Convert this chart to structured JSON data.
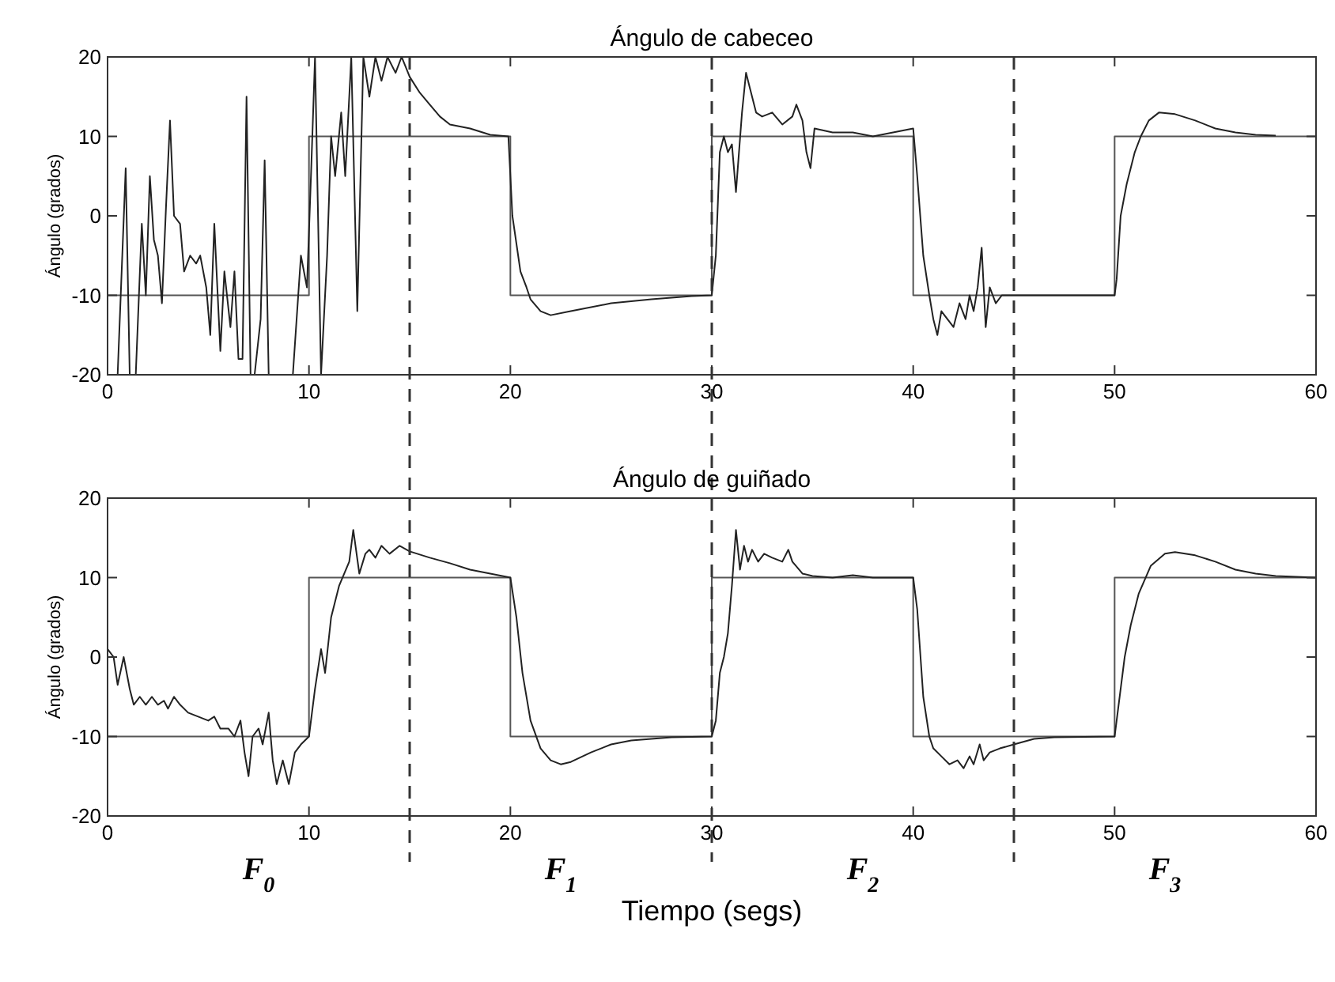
{
  "chart_data": [
    {
      "type": "line",
      "title": "Ángulo de cabeceo",
      "ylabel": "Ángulo (grados)",
      "xlim": [
        0,
        60
      ],
      "ylim": [
        -20,
        20
      ],
      "xticks": [
        0,
        10,
        20,
        30,
        40,
        50,
        60
      ],
      "yticks": [
        -20,
        -10,
        0,
        10,
        20
      ],
      "grid": false,
      "series": [
        {
          "color": "#555555",
          "line_style": "solid",
          "x": [
            0,
            10,
            10,
            20,
            20,
            30,
            30,
            40,
            40,
            50,
            50,
            60,
            60
          ],
          "values": [
            -10,
            -10,
            10,
            10,
            -10,
            -10,
            10,
            10,
            -10,
            -10,
            10,
            10,
            0
          ]
        },
        {
          "color": "#222222",
          "line_style": "solid",
          "x": [
            0.5,
            0.9,
            1.1,
            1.4,
            1.7,
            1.9,
            2.1,
            2.3,
            2.5,
            2.7,
            2.9,
            3.1,
            3.3,
            3.6,
            3.8,
            4.1,
            4.4,
            4.6,
            4.9,
            5.1,
            5.3,
            5.6,
            5.8,
            6.1,
            6.3,
            6.5,
            6.7,
            6.9,
            7.1,
            7.3,
            7.6,
            7.8,
            8.0,
            8.4,
            8.8,
            9.2,
            9.6,
            9.9,
            10.1,
            10.3,
            10.6,
            10.9,
            11.1,
            11.3,
            11.6,
            11.8,
            12.1,
            12.4,
            12.7,
            13,
            13.3,
            13.6,
            13.9,
            14.3,
            14.6,
            15,
            15.5,
            16,
            16.5,
            17,
            18,
            19,
            19.9,
            20.1,
            20.5,
            20.8,
            21,
            21.5,
            22,
            23,
            25,
            27,
            29,
            30,
            30.2,
            30.4,
            30.6,
            30.8,
            31,
            31.2,
            31.5,
            31.7,
            31.9,
            32.2,
            32.5,
            33,
            33.5,
            34,
            34.2,
            34.5,
            34.7,
            34.9,
            35.1,
            36,
            37,
            38,
            39,
            40,
            40.2,
            40.5,
            40.8,
            41,
            41.2,
            41.4,
            41.7,
            42,
            42.3,
            42.6,
            42.8,
            43,
            43.2,
            43.4,
            43.6,
            43.8,
            44.1,
            44.4,
            45,
            46,
            50,
            50.1,
            50.3,
            50.6,
            51,
            51.3,
            51.7,
            52.2,
            53,
            54,
            55,
            56,
            57,
            58
          ],
          "values": [
            -20,
            6,
            -20,
            -20,
            -1,
            -10,
            5,
            -3,
            -5,
            -11,
            1,
            12,
            0,
            -1,
            -7,
            -5,
            -6,
            -5,
            -9,
            -15,
            -1,
            -17,
            -7,
            -14,
            -7,
            -18,
            -18,
            15,
            -20,
            -20,
            -13,
            7,
            -20,
            -20,
            -20,
            -20,
            -5,
            -9,
            5,
            20,
            -20,
            -5,
            10,
            5,
            13,
            5,
            20,
            -12,
            20,
            15,
            20,
            17,
            20,
            18,
            20,
            17.5,
            15.5,
            14,
            12.5,
            11.5,
            11,
            10.2,
            10,
            0,
            -7,
            -9,
            -10.5,
            -12,
            -12.5,
            -12,
            -11,
            -10.5,
            -10.1,
            -10,
            -5,
            8,
            10,
            8,
            9,
            3,
            13,
            18,
            16,
            13,
            12.5,
            13,
            11.5,
            12.5,
            14,
            12,
            8,
            6,
            11,
            10.5,
            10.5,
            10,
            10.5,
            11,
            5,
            -5,
            -10,
            -13,
            -15,
            -12,
            -13,
            -14,
            -11,
            -13,
            -10,
            -12,
            -9,
            -4,
            -14,
            -9,
            -11,
            -10,
            -10,
            -10,
            -10,
            -8,
            0,
            4,
            8,
            10,
            12,
            13,
            12.8,
            12,
            11,
            10.5,
            10.2,
            10.1
          ]
        }
      ],
      "ref_lines": [
        {
          "axis": "x",
          "value": 15,
          "line_style": "dashed"
        },
        {
          "axis": "x",
          "value": 30,
          "line_style": "dashed"
        },
        {
          "axis": "x",
          "value": 45,
          "line_style": "dashed"
        }
      ]
    },
    {
      "type": "line",
      "title": "Ángulo de guiñado",
      "ylabel": "Ángulo (grados)",
      "xlabel": "Tiempo (segs)",
      "xlim": [
        0,
        60
      ],
      "ylim": [
        -20,
        20
      ],
      "xticks": [
        0,
        10,
        20,
        30,
        40,
        50,
        60
      ],
      "yticks": [
        -20,
        -10,
        0,
        10,
        20
      ],
      "grid": false,
      "series": [
        {
          "color": "#555555",
          "line_style": "solid",
          "x": [
            0,
            10,
            10,
            20,
            20,
            30,
            30,
            40,
            40,
            50,
            50,
            60,
            60
          ],
          "values": [
            -10,
            -10,
            10,
            10,
            -10,
            -10,
            10,
            10,
            -10,
            -10,
            10,
            10,
            0
          ]
        },
        {
          "color": "#222222",
          "line_style": "solid",
          "x": [
            0,
            0.3,
            0.5,
            0.8,
            1.1,
            1.3,
            1.6,
            1.9,
            2.2,
            2.5,
            2.8,
            3,
            3.3,
            3.6,
            4,
            4.5,
            5,
            5.3,
            5.6,
            6,
            6.3,
            6.6,
            6.8,
            7,
            7.2,
            7.5,
            7.7,
            8,
            8.2,
            8.4,
            8.7,
            9,
            9.3,
            9.6,
            9.8,
            10,
            10.3,
            10.6,
            10.8,
            11.1,
            11.5,
            12,
            12.2,
            12.5,
            12.8,
            13,
            13.3,
            13.6,
            14,
            14.5,
            15,
            16,
            17,
            18,
            19,
            20,
            20.3,
            20.6,
            21,
            21.5,
            22,
            22.5,
            23,
            24,
            25,
            26,
            28,
            30,
            30.2,
            30.4,
            30.6,
            30.8,
            31,
            31.2,
            31.4,
            31.6,
            31.8,
            32,
            32.3,
            32.6,
            33,
            33.5,
            33.8,
            34,
            34.5,
            35,
            36,
            37,
            38,
            39,
            40,
            40.2,
            40.5,
            40.8,
            41,
            41.4,
            41.8,
            42.2,
            42.5,
            42.8,
            43,
            43.3,
            43.5,
            43.8,
            44.3,
            45,
            46,
            47,
            50,
            50.2,
            50.5,
            50.8,
            51.2,
            51.8,
            52.5,
            53,
            54,
            55,
            56,
            57,
            58,
            59,
            60
          ],
          "values": [
            1,
            0,
            -3.5,
            0,
            -4,
            -6,
            -5,
            -6,
            -5,
            -6,
            -5.5,
            -6.5,
            -5,
            -6,
            -7,
            -7.5,
            -8,
            -7.5,
            -9,
            -9,
            -10,
            -8,
            -12,
            -15,
            -10,
            -9,
            -11,
            -7,
            -13,
            -16,
            -13,
            -16,
            -12,
            -11,
            -10.5,
            -10,
            -4,
            1,
            -2,
            5,
            9,
            12,
            16,
            10.5,
            13,
            13.5,
            12.5,
            14,
            13,
            14,
            13.3,
            12.5,
            11.8,
            11,
            10.5,
            10,
            5,
            -2,
            -8,
            -11.5,
            -13,
            -13.5,
            -13.2,
            -12,
            -11,
            -10.5,
            -10.1,
            -10,
            -8,
            -2,
            0,
            3,
            9,
            16,
            11,
            14,
            12,
            13.5,
            12,
            13,
            12.5,
            12,
            13.5,
            12,
            10.5,
            10.2,
            10,
            10.3,
            10,
            10,
            10,
            6,
            -5,
            -10,
            -11.5,
            -12.5,
            -13.5,
            -13,
            -14,
            -12.5,
            -13.5,
            -11,
            -13,
            -12,
            -11.5,
            -11,
            -10.3,
            -10.1,
            -10,
            -6,
            0,
            4,
            8,
            11.5,
            13,
            13.2,
            12.8,
            12,
            11,
            10.5,
            10.2,
            10.1,
            10
          ]
        }
      ],
      "ref_lines": [
        {
          "axis": "x",
          "value": 15,
          "line_style": "dashed"
        },
        {
          "axis": "x",
          "value": 30,
          "line_style": "dashed"
        },
        {
          "axis": "x",
          "value": 45,
          "line_style": "dashed"
        }
      ],
      "annotations": [
        "F$_{0}$",
        "F$_{1}$",
        "F$_{2}$",
        "F$_{3}$"
      ]
    }
  ]
}
